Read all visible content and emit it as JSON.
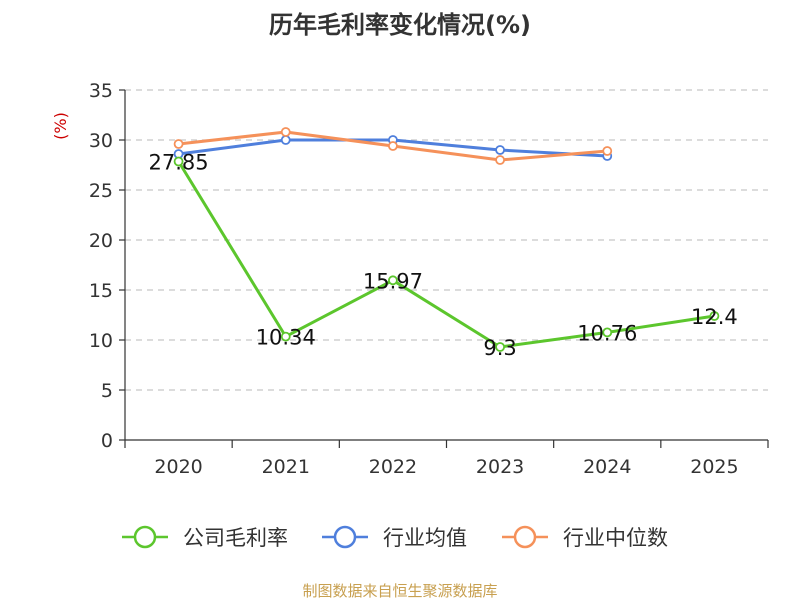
{
  "chart_data": {
    "type": "line",
    "title": "历年毛利率变化情况(%)",
    "ylabel": "(%)",
    "xlabel": "",
    "categories": [
      "2020",
      "2021",
      "2022",
      "2023",
      "2024",
      "2025"
    ],
    "ylim": [
      0,
      35
    ],
    "yticks": [
      0,
      5,
      10,
      15,
      20,
      25,
      30,
      35
    ],
    "grid": true,
    "legend_position": "bottom",
    "series": [
      {
        "name": "公司毛利率",
        "color": "#5cc62d",
        "values": [
          27.85,
          10.34,
          15.97,
          9.3,
          10.76,
          12.4
        ],
        "labels": [
          "27.85",
          "10.34",
          "15.97",
          "9.3",
          "10.76",
          "12.4"
        ]
      },
      {
        "name": "行业均值",
        "color": "#4f7fdc",
        "values": [
          28.6,
          30.0,
          30.0,
          29.0,
          28.4,
          null
        ]
      },
      {
        "name": "行业中位数",
        "color": "#f5915a",
        "values": [
          29.6,
          30.8,
          29.4,
          28.0,
          28.9,
          null
        ]
      }
    ]
  },
  "source": "制图数据来自恒生聚源数据库"
}
